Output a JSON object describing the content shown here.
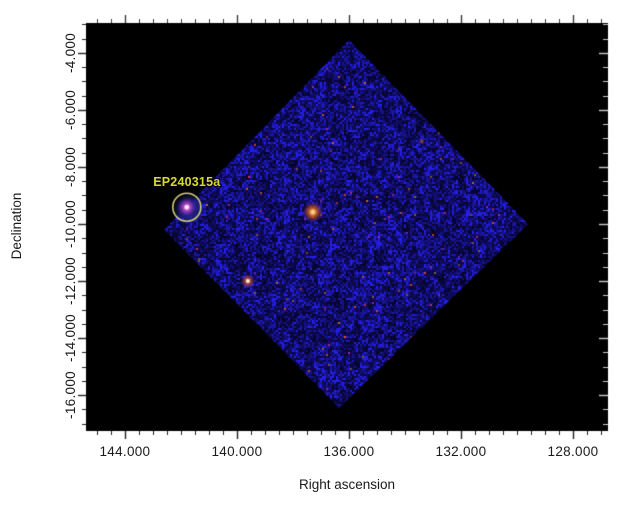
{
  "page": {
    "background": "#ffffff"
  },
  "chart_data": {
    "type": "heatmap",
    "description": "Wide-field X-ray sky image: diamond-shaped detector field of view filled with blue photon noise on a black plot area, with point sources; transient EP240315a is circled and labeled in yellow.",
    "title": "",
    "xlabel": "Right ascension",
    "ylabel": "Declination",
    "axes": {
      "x": {
        "tick_labels": [
          "144.000",
          "140.000",
          "136.000",
          "132.000",
          "128.000"
        ],
        "tick_values": [
          144,
          140,
          136,
          132,
          128
        ],
        "major_step_deg": 4,
        "minor_step_deg": 0.5,
        "ra_at_left_edge": 145.39,
        "ra_at_right_edge": 126.75,
        "direction": "RA decreases to the right"
      },
      "y": {
        "tick_labels": [
          "-4.000",
          "-6.000",
          "-8.000",
          "-10.000",
          "-12.000",
          "-14.000",
          "-16.000"
        ],
        "tick_values": [
          -4,
          -6,
          -8,
          -10,
          -12,
          -14,
          -16
        ],
        "major_step_deg": 2,
        "minor_step_deg": 0.5,
        "dec_at_top_edge": -2.95,
        "dec_at_bottom_edge": -17.26
      }
    },
    "fov_polygon_radec": [
      [
        136.0,
        -3.55
      ],
      [
        129.6,
        -10.0
      ],
      [
        136.35,
        -16.45
      ],
      [
        142.6,
        -10.2
      ]
    ],
    "sources": [
      {
        "id": "EP240315a",
        "ra": 141.79,
        "dec": -9.41,
        "appearance": "white core with magenta-purple halo",
        "circled": true
      },
      {
        "id": "bright-central-source",
        "ra": 137.29,
        "dec": -9.58,
        "appearance": "bright orange blob with yellow-white core",
        "circled": false
      },
      {
        "id": "lower-left-source",
        "ra": 139.61,
        "dec": -12.0,
        "appearance": "small white-pink core with orange fringe",
        "circled": false
      },
      {
        "id": "faint-upper-right-speck",
        "ra": 133.4,
        "dec": -7.1,
        "appearance": "faint orange speck",
        "circled": false
      }
    ],
    "annotation": {
      "label": "EP240315a",
      "target_ra": 141.79,
      "target_dec": -9.41,
      "circle_radius_deg": 0.5,
      "circle_color": "#cfcf78",
      "label_color": "#d8d832"
    },
    "colors": {
      "figure_background": "#ffffff",
      "plot_background": "#000000",
      "field_noise_base": "#11116e",
      "field_noise_bright": "#3535e0",
      "hot_speck": "#c05828",
      "tick_color": "#222222",
      "right_tick_color": "#c9c9c9",
      "text_color": "#1a1a1a"
    }
  }
}
